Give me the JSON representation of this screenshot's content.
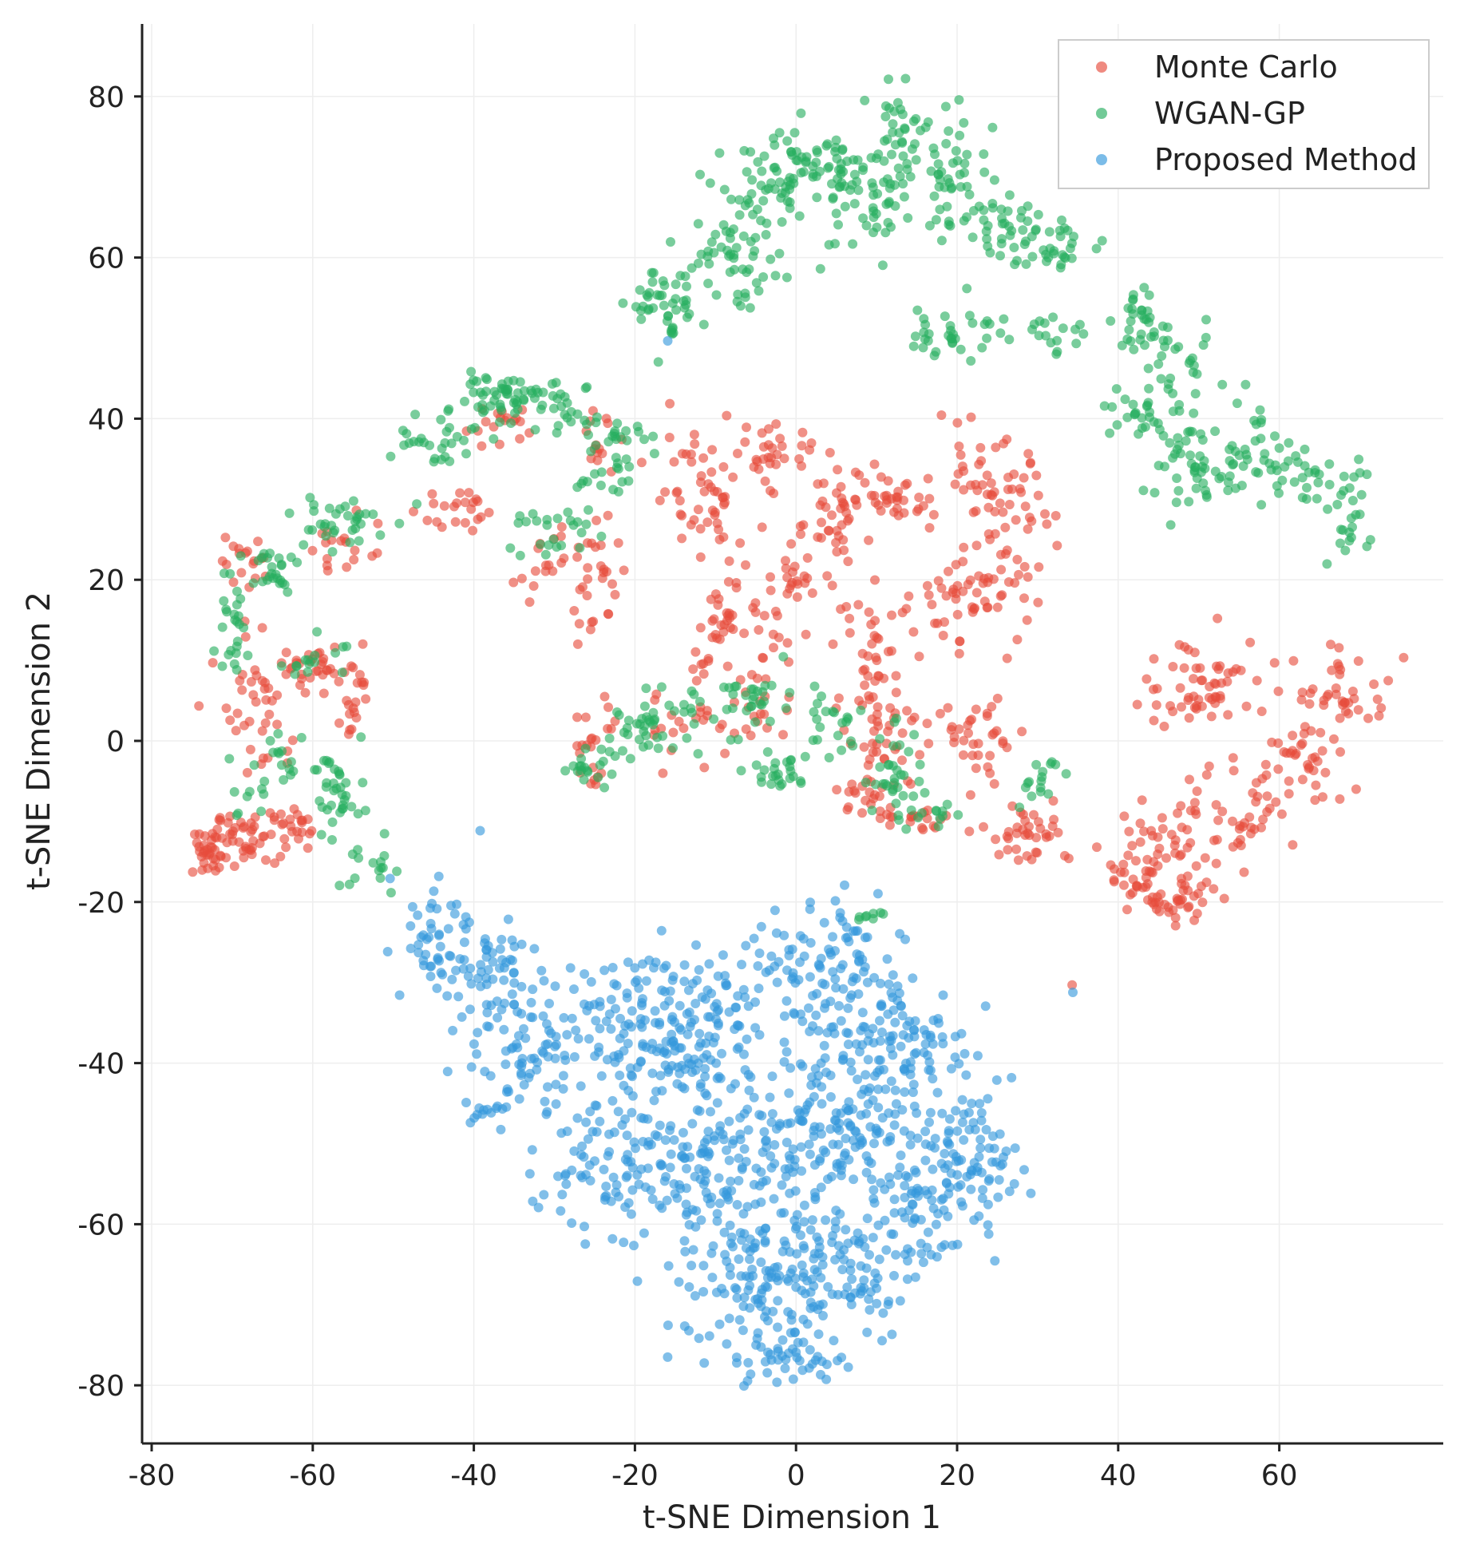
{
  "chart_data": {
    "type": "scatter",
    "title": "",
    "xlabel": "t-SNE Dimension 1",
    "ylabel": "t-SNE Dimension 2",
    "xlim": [
      -81,
      80
    ],
    "ylim": [
      -87,
      88
    ],
    "xticks": [
      -80,
      -60,
      -40,
      -20,
      0,
      20,
      40,
      60
    ],
    "yticks": [
      -80,
      -60,
      -40,
      -20,
      0,
      20,
      40,
      60,
      80
    ],
    "xtick_labels": [
      "-80",
      "-60",
      "-40",
      "-20",
      "0",
      "20",
      "40",
      "60"
    ],
    "ytick_labels": [
      "-80",
      "-60",
      "-40",
      "-20",
      "0",
      "20",
      "40",
      "60",
      "80"
    ],
    "grid": true,
    "legend_position": "top-right",
    "series": [
      {
        "name": "Monte Carlo",
        "color": "#e74c3c",
        "clusters": [
          {
            "cx": -73,
            "cy": -14,
            "sx": 1.5,
            "sy": 1.5,
            "n": 35
          },
          {
            "cx": -68,
            "cy": -12,
            "sx": 2,
            "sy": 1.5,
            "n": 40
          },
          {
            "cx": -62,
            "cy": -11,
            "sx": 1.5,
            "sy": 1.2,
            "n": 20
          },
          {
            "cx": -66,
            "cy": 5,
            "sx": 2.5,
            "sy": 5,
            "n": 45
          },
          {
            "cx": -58,
            "cy": 9,
            "sx": 3,
            "sy": 1.5,
            "n": 30
          },
          {
            "cx": -55,
            "cy": 5,
            "sx": 1,
            "sy": 3,
            "n": 15
          },
          {
            "cx": -68,
            "cy": 23,
            "sx": 2,
            "sy": 2,
            "n": 18
          },
          {
            "cx": -56,
            "cy": 24,
            "sx": 2,
            "sy": 2.5,
            "n": 18
          },
          {
            "cx": -44,
            "cy": 29,
            "sx": 2.5,
            "sy": 1.5,
            "n": 22
          },
          {
            "cx": -36,
            "cy": 39,
            "sx": 2.5,
            "sy": 1.5,
            "n": 18
          },
          {
            "cx": -31,
            "cy": 22,
            "sx": 2,
            "sy": 2,
            "n": 16
          },
          {
            "cx": -25,
            "cy": 20,
            "sx": 1.5,
            "sy": 4,
            "n": 30
          },
          {
            "cx": -25,
            "cy": 37,
            "sx": 1.5,
            "sy": 2,
            "n": 14
          },
          {
            "cx": -12,
            "cy": 31,
            "sx": 3,
            "sy": 4,
            "n": 45
          },
          {
            "cx": -3,
            "cy": 36,
            "sx": 3,
            "sy": 2,
            "n": 35
          },
          {
            "cx": 4,
            "cy": 27,
            "sx": 2.5,
            "sy": 3,
            "n": 35
          },
          {
            "cx": 0,
            "cy": 20,
            "sx": 1.5,
            "sy": 1.5,
            "n": 20
          },
          {
            "cx": -10,
            "cy": 15,
            "sx": 2,
            "sy": 5,
            "n": 40
          },
          {
            "cx": -4,
            "cy": 13,
            "sx": 2,
            "sy": 3,
            "n": 20
          },
          {
            "cx": -25,
            "cy": 0,
            "sx": 1.5,
            "sy": 4,
            "n": 22
          },
          {
            "cx": -13,
            "cy": 2,
            "sx": 3,
            "sy": 2,
            "n": 20
          },
          {
            "cx": -4,
            "cy": 4,
            "sx": 2,
            "sy": 2,
            "n": 18
          },
          {
            "cx": 12,
            "cy": 30,
            "sx": 3,
            "sy": 2,
            "n": 35
          },
          {
            "cx": 24,
            "cy": 29,
            "sx": 4,
            "sy": 4,
            "n": 65
          },
          {
            "cx": 22,
            "cy": 18,
            "sx": 4,
            "sy": 3,
            "n": 55
          },
          {
            "cx": 10,
            "cy": 11,
            "sx": 2.5,
            "sy": 4,
            "n": 40
          },
          {
            "cx": 11,
            "cy": 1,
            "sx": 2.5,
            "sy": 4,
            "n": 40
          },
          {
            "cx": 9,
            "cy": -7,
            "sx": 2.5,
            "sy": 1.5,
            "n": 20
          },
          {
            "cx": 16,
            "cy": -10,
            "sx": 2.5,
            "sy": 1,
            "n": 16
          },
          {
            "cx": 23,
            "cy": 1,
            "sx": 3,
            "sy": 2.5,
            "n": 35
          },
          {
            "cx": 28,
            "cy": -11,
            "sx": 3,
            "sy": 2,
            "n": 40
          },
          {
            "cx": 51,
            "cy": 7,
            "sx": 4,
            "sy": 3,
            "n": 60
          },
          {
            "cx": 68,
            "cy": 6,
            "sx": 3,
            "sy": 2.5,
            "n": 40
          },
          {
            "cx": 63,
            "cy": -3,
            "sx": 3,
            "sy": 3,
            "n": 35
          },
          {
            "cx": 55,
            "cy": -10,
            "sx": 4,
            "sy": 3,
            "n": 50
          },
          {
            "cx": 44,
            "cy": -15,
            "sx": 3,
            "sy": 3,
            "n": 60
          },
          {
            "cx": 47,
            "cy": -20,
            "sx": 3,
            "sy": 1.2,
            "n": 30
          },
          {
            "cx": 34.3,
            "cy": -30.8,
            "sx": 0.2,
            "sy": 0.2,
            "n": 1
          }
        ]
      },
      {
        "name": "WGAN-GP",
        "color": "#27ae60",
        "clusters": [
          {
            "cx": -17,
            "cy": 55,
            "sx": 2,
            "sy": 1.5,
            "n": 30
          },
          {
            "cx": -15,
            "cy": 51,
            "sx": 1,
            "sy": 2,
            "n": 15
          },
          {
            "cx": -8,
            "cy": 60,
            "sx": 3,
            "sy": 3,
            "n": 50
          },
          {
            "cx": -3,
            "cy": 68,
            "sx": 3,
            "sy": 3,
            "n": 50
          },
          {
            "cx": 3,
            "cy": 72,
            "sx": 3,
            "sy": 2,
            "n": 40
          },
          {
            "cx": 8,
            "cy": 66,
            "sx": 3,
            "sy": 4,
            "n": 55
          },
          {
            "cx": 13,
            "cy": 75,
            "sx": 2,
            "sy": 3,
            "n": 35
          },
          {
            "cx": 20,
            "cy": 70,
            "sx": 3,
            "sy": 4,
            "n": 50
          },
          {
            "cx": 27,
            "cy": 64,
            "sx": 3,
            "sy": 2,
            "n": 35
          },
          {
            "cx": 33,
            "cy": 61,
            "sx": 3,
            "sy": 1.5,
            "n": 25
          },
          {
            "cx": 20,
            "cy": 51,
            "sx": 3,
            "sy": 2,
            "n": 35
          },
          {
            "cx": 32,
            "cy": 51,
            "sx": 2,
            "sy": 1.5,
            "n": 16
          },
          {
            "cx": 43,
            "cy": 52,
            "sx": 2,
            "sy": 2,
            "n": 30
          },
          {
            "cx": 48,
            "cy": 45,
            "sx": 2,
            "sy": 3,
            "n": 30
          },
          {
            "cx": 42,
            "cy": 40,
            "sx": 2,
            "sy": 1.5,
            "n": 22
          },
          {
            "cx": 49,
            "cy": 34,
            "sx": 3,
            "sy": 3,
            "n": 45
          },
          {
            "cx": 56,
            "cy": 37,
            "sx": 2.5,
            "sy": 3,
            "n": 30
          },
          {
            "cx": 63,
            "cy": 33,
            "sx": 3,
            "sy": 2,
            "n": 30
          },
          {
            "cx": 68,
            "cy": 28,
            "sx": 1.5,
            "sy": 3,
            "n": 25
          },
          {
            "cx": -37,
            "cy": 43,
            "sx": 3,
            "sy": 1.2,
            "n": 45
          },
          {
            "cx": -29,
            "cy": 42,
            "sx": 2.5,
            "sy": 2,
            "n": 30
          },
          {
            "cx": -23,
            "cy": 38,
            "sx": 2,
            "sy": 2,
            "n": 25
          },
          {
            "cx": -45,
            "cy": 38,
            "sx": 3,
            "sy": 2,
            "n": 30
          },
          {
            "cx": -57,
            "cy": 27,
            "sx": 3,
            "sy": 2,
            "n": 35
          },
          {
            "cx": -66,
            "cy": 21,
            "sx": 2,
            "sy": 2,
            "n": 25
          },
          {
            "cx": -70,
            "cy": 14,
            "sx": 1.5,
            "sy": 3,
            "n": 25
          },
          {
            "cx": -30,
            "cy": 26,
            "sx": 3,
            "sy": 2,
            "n": 25
          },
          {
            "cx": -24,
            "cy": 32,
            "sx": 1.5,
            "sy": 1,
            "n": 12
          },
          {
            "cx": -56,
            "cy": -7,
            "sx": 2,
            "sy": 4,
            "n": 35
          },
          {
            "cx": -52,
            "cy": -15,
            "sx": 1.5,
            "sy": 2,
            "n": 15
          },
          {
            "cx": -63,
            "cy": -3,
            "sx": 2,
            "sy": 1.5,
            "n": 16
          },
          {
            "cx": -68,
            "cy": -7,
            "sx": 1,
            "sy": 1.5,
            "n": 10
          },
          {
            "cx": -60,
            "cy": 10,
            "sx": 2,
            "sy": 1.5,
            "n": 15
          },
          {
            "cx": -26,
            "cy": -3,
            "sx": 1.5,
            "sy": 1,
            "n": 20
          },
          {
            "cx": -18,
            "cy": 2,
            "sx": 3,
            "sy": 2,
            "n": 40
          },
          {
            "cx": -6,
            "cy": 5,
            "sx": 3,
            "sy": 2,
            "n": 35
          },
          {
            "cx": -2,
            "cy": -4,
            "sx": 2,
            "sy": 1.5,
            "n": 25
          },
          {
            "cx": 4,
            "cy": 2,
            "sx": 2,
            "sy": 2,
            "n": 20
          },
          {
            "cx": 12,
            "cy": -4,
            "sx": 2,
            "sy": 3,
            "n": 30
          },
          {
            "cx": 17,
            "cy": -9,
            "sx": 2.5,
            "sy": 1,
            "n": 15
          },
          {
            "cx": 30,
            "cy": -5,
            "sx": 1.5,
            "sy": 2,
            "n": 16
          },
          {
            "cx": 9,
            "cy": -22,
            "sx": 1,
            "sy": 0.4,
            "n": 8
          }
        ]
      },
      {
        "name": "Proposed Method",
        "color": "#3498db",
        "clusters": [
          {
            "cx": -44,
            "cy": -24,
            "sx": 2.5,
            "sy": 3,
            "n": 45
          },
          {
            "cx": -38,
            "cy": -30,
            "sx": 4,
            "sy": 4,
            "n": 70
          },
          {
            "cx": -33,
            "cy": -40,
            "sx": 4,
            "sy": 3,
            "n": 55
          },
          {
            "cx": -39,
            "cy": -46,
            "sx": 1.5,
            "sy": 1,
            "n": 12
          },
          {
            "cx": -22,
            "cy": -35,
            "sx": 5,
            "sy": 4,
            "n": 90
          },
          {
            "cx": -24,
            "cy": -52,
            "sx": 4,
            "sy": 5,
            "n": 90
          },
          {
            "cx": -12,
            "cy": -35,
            "sx": 4,
            "sy": 5,
            "n": 110
          },
          {
            "cx": -10,
            "cy": -52,
            "sx": 5,
            "sy": 5,
            "n": 130
          },
          {
            "cx": -5,
            "cy": -68,
            "sx": 5,
            "sy": 5,
            "n": 120
          },
          {
            "cx": 3,
            "cy": -30,
            "sx": 5,
            "sy": 5,
            "n": 120
          },
          {
            "cx": 3,
            "cy": -48,
            "sx": 5,
            "sy": 5,
            "n": 150
          },
          {
            "cx": 5,
            "cy": -65,
            "sx": 5,
            "sy": 5,
            "n": 110
          },
          {
            "cx": 14,
            "cy": -38,
            "sx": 4,
            "sy": 5,
            "n": 100
          },
          {
            "cx": 16,
            "cy": -56,
            "sx": 5,
            "sy": 5,
            "n": 110
          },
          {
            "cx": 22,
            "cy": -50,
            "sx": 3,
            "sy": 3,
            "n": 50
          },
          {
            "cx": 0,
            "cy": -77,
            "sx": 3,
            "sy": 1.5,
            "n": 30
          },
          {
            "cx": -16,
            "cy": 49.8,
            "sx": 0.2,
            "sy": 0.2,
            "n": 1
          },
          {
            "cx": -50.5,
            "cy": -17.5,
            "sx": 0.2,
            "sy": 0.2,
            "n": 1
          },
          {
            "cx": 34.3,
            "cy": -31,
            "sx": 0.2,
            "sy": 0.2,
            "n": 1
          }
        ]
      }
    ]
  }
}
